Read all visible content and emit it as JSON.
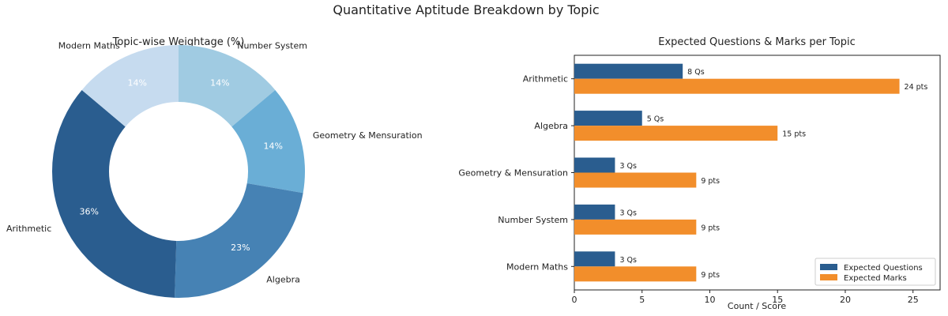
{
  "title": "Quantitative Aptitude Breakdown by Topic",
  "chart_data": [
    {
      "type": "pie",
      "variant": "donut",
      "title": "Topic-wise Weightage (%)",
      "slices": [
        {
          "label": "Number System",
          "value": 14,
          "label_text": "14%",
          "color": "#a0cbe2"
        },
        {
          "label": "Geometry & Mensuration",
          "value": 14,
          "label_text": "14%",
          "color": "#6aaed6"
        },
        {
          "label": "Algebra",
          "value": 23,
          "label_text": "23%",
          "color": "#4682b4"
        },
        {
          "label": "Arithmetic",
          "value": 36,
          "label_text": "36%",
          "color": "#2a5d8f"
        },
        {
          "label": "Modern Maths",
          "value": 14,
          "label_text": "14%",
          "color": "#c6dbef"
        }
      ]
    },
    {
      "type": "bar",
      "orientation": "horizontal",
      "title": "Expected Questions & Marks per Topic",
      "xlabel": "Count / Score",
      "ylabel": "",
      "xlim": [
        0,
        27
      ],
      "xticks": [
        0,
        5,
        10,
        15,
        20,
        25
      ],
      "grid": false,
      "legend_position": "lower-right",
      "categories": [
        "Arithmetic",
        "Algebra",
        "Geometry & Mensuration",
        "Number System",
        "Modern Maths"
      ],
      "series": [
        {
          "name": "Expected Questions",
          "color": "#2a5d8f",
          "values": [
            8,
            5,
            3,
            3,
            3
          ],
          "labels": [
            "8 Qs",
            "5 Qs",
            "3 Qs",
            "3 Qs",
            "3 Qs"
          ]
        },
        {
          "name": "Expected Marks",
          "color": "#f28e2b",
          "values": [
            24,
            15,
            9,
            9,
            9
          ],
          "labels": [
            "24 pts",
            "15 pts",
            "9 pts",
            "9 pts",
            "9 pts"
          ]
        }
      ]
    }
  ]
}
